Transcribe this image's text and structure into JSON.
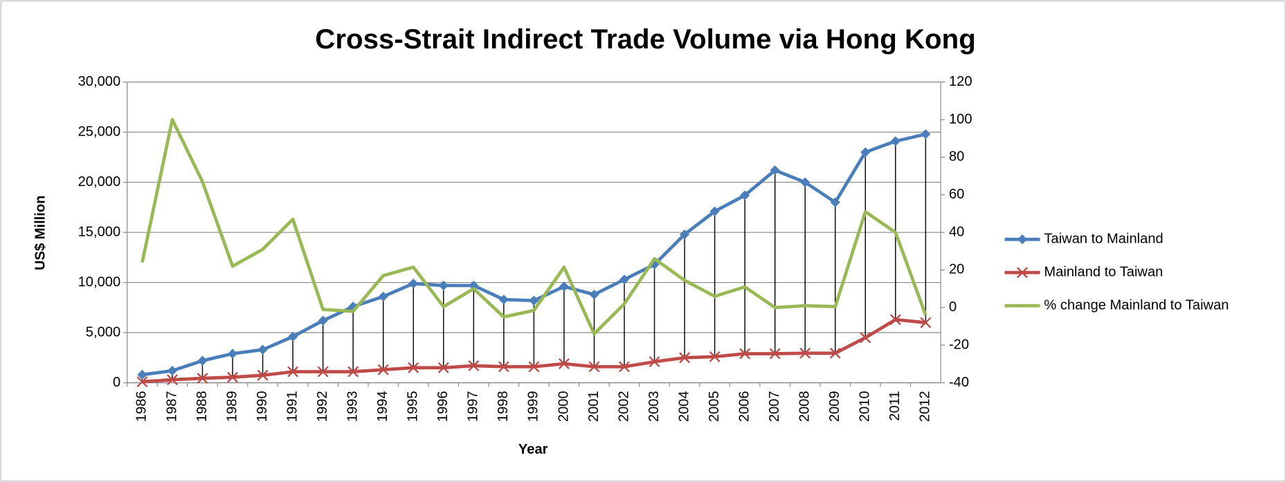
{
  "chart_data": {
    "type": "line",
    "title": "Cross-Strait Indirect Trade Volume via Hong Kong",
    "x_label": "Year",
    "y_label": "US$ Million",
    "categories": [
      "1986",
      "1987",
      "1988",
      "1989",
      "1990",
      "1991",
      "1992",
      "1993",
      "1994",
      "1995",
      "1996",
      "1997",
      "1998",
      "1999",
      "2000",
      "2001",
      "2002",
      "2003",
      "2004",
      "2005",
      "2006",
      "2007",
      "2008",
      "2009",
      "2010",
      "2011",
      "2012"
    ],
    "series": [
      {
        "name": "Taiwan to Mainland",
        "color": "#4a7ebb",
        "marker": "diamond",
        "values": [
          800,
          1200,
          2200,
          2900,
          3300,
          4600,
          6200,
          7600,
          8600,
          9900,
          9700,
          9700,
          8300,
          8200,
          9600,
          8800,
          10300,
          11800,
          14800,
          17100,
          18700,
          21200,
          20000,
          18000,
          23000,
          24100,
          24800
        ]
      },
      {
        "name": "Mainland to Taiwan",
        "color": "#be4b48",
        "marker": "x",
        "values": [
          100,
          300,
          450,
          550,
          750,
          1100,
          1100,
          1100,
          1300,
          1500,
          1500,
          1700,
          1600,
          1600,
          1900,
          1600,
          1600,
          2100,
          2500,
          2600,
          2900,
          2900,
          2950,
          2950,
          4500,
          6300,
          6000
        ]
      },
      {
        "name": "% change Mainland to Taiwan",
        "color": "#98b954",
        "axis": "y2",
        "values": [
          24,
          100,
          67,
          22,
          31,
          47,
          -1,
          -2,
          17,
          21.5,
          0.5,
          10,
          -5,
          -1.5,
          21.5,
          -14,
          2,
          26,
          14.5,
          6,
          11,
          0,
          1,
          0.5,
          51,
          40,
          -4
        ]
      }
    ],
    "ylim": [
      0,
      30000
    ],
    "yticks": [
      0,
      {
        "value": 5000,
        "label": "5,000"
      },
      {
        "value": 10000,
        "label": "10,000"
      },
      {
        "value": 15000,
        "label": "15,000"
      },
      {
        "value": 20000,
        "label": "20,000"
      },
      {
        "value": 25000,
        "label": "25,000"
      },
      {
        "value": 30000,
        "label": "30,000"
      }
    ],
    "y2lim": [
      -40,
      120
    ],
    "y2ticks": [
      -40,
      -20,
      0,
      20,
      40,
      60,
      80,
      100,
      120
    ],
    "grid": true,
    "high_low_lines": true,
    "legend": "right"
  }
}
